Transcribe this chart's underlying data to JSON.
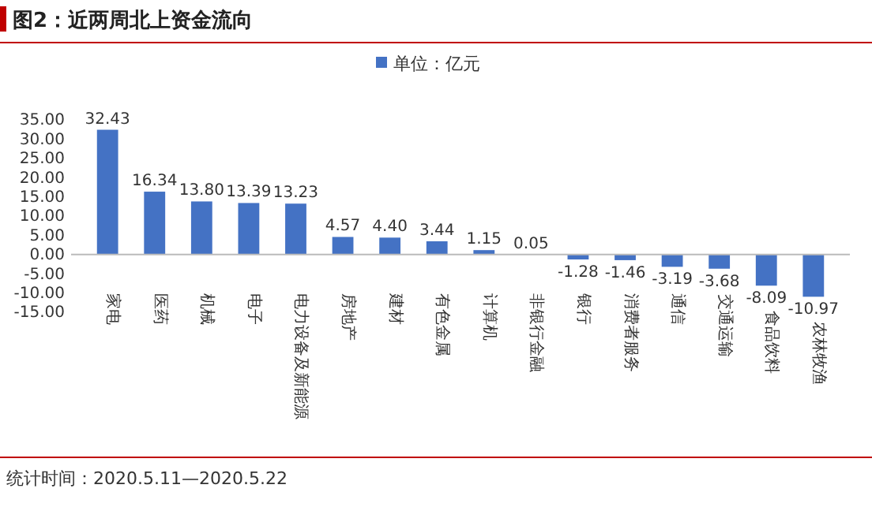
{
  "chart_data": {
    "type": "bar",
    "title": "图2：近两周北上资金流向",
    "categories": [
      "家电",
      "医药",
      "机械",
      "电子",
      "电力设备及新能源",
      "房地产",
      "建材",
      "有色金属",
      "计算机",
      "非银行金融",
      "银行",
      "消费者服务",
      "通信",
      "交通运输",
      "食品饮料",
      "农林牧渔"
    ],
    "series": [
      {
        "name": "单位：亿元",
        "color": "#4472c4",
        "values": [
          32.43,
          16.34,
          13.8,
          13.39,
          13.23,
          4.57,
          4.4,
          3.44,
          1.15,
          0.05,
          -1.28,
          -1.46,
          -3.19,
          -3.68,
          -8.09,
          -10.97
        ]
      }
    ],
    "value_labels": [
      "32.43",
      "16.34",
      "13.80",
      "13.39",
      "13.23",
      "4.57",
      "4.40",
      "3.44",
      "1.15",
      "0.05",
      "-1.28",
      "-1.46",
      "-3.19",
      "-3.68",
      "-8.09",
      "-10.97"
    ],
    "ylim": [
      -15,
      35
    ],
    "yticks": [
      {
        "value": 35,
        "label": "35.00"
      },
      {
        "value": 30,
        "label": "30.00"
      },
      {
        "value": 25,
        "label": "25.00"
      },
      {
        "value": 20,
        "label": "20.00"
      },
      {
        "value": 15,
        "label": "15.00"
      },
      {
        "value": 10,
        "label": "10.00"
      },
      {
        "value": 5,
        "label": "5.00"
      },
      {
        "value": 0,
        "label": "0.00"
      },
      {
        "value": -5,
        "label": "-5.00"
      },
      {
        "value": -10,
        "label": "-10.00"
      },
      {
        "value": -15,
        "label": "-15.00"
      }
    ],
    "legend": "top",
    "grid": false,
    "annotations": [
      "统计时间：2020.5.11—2020.5.22"
    ]
  }
}
